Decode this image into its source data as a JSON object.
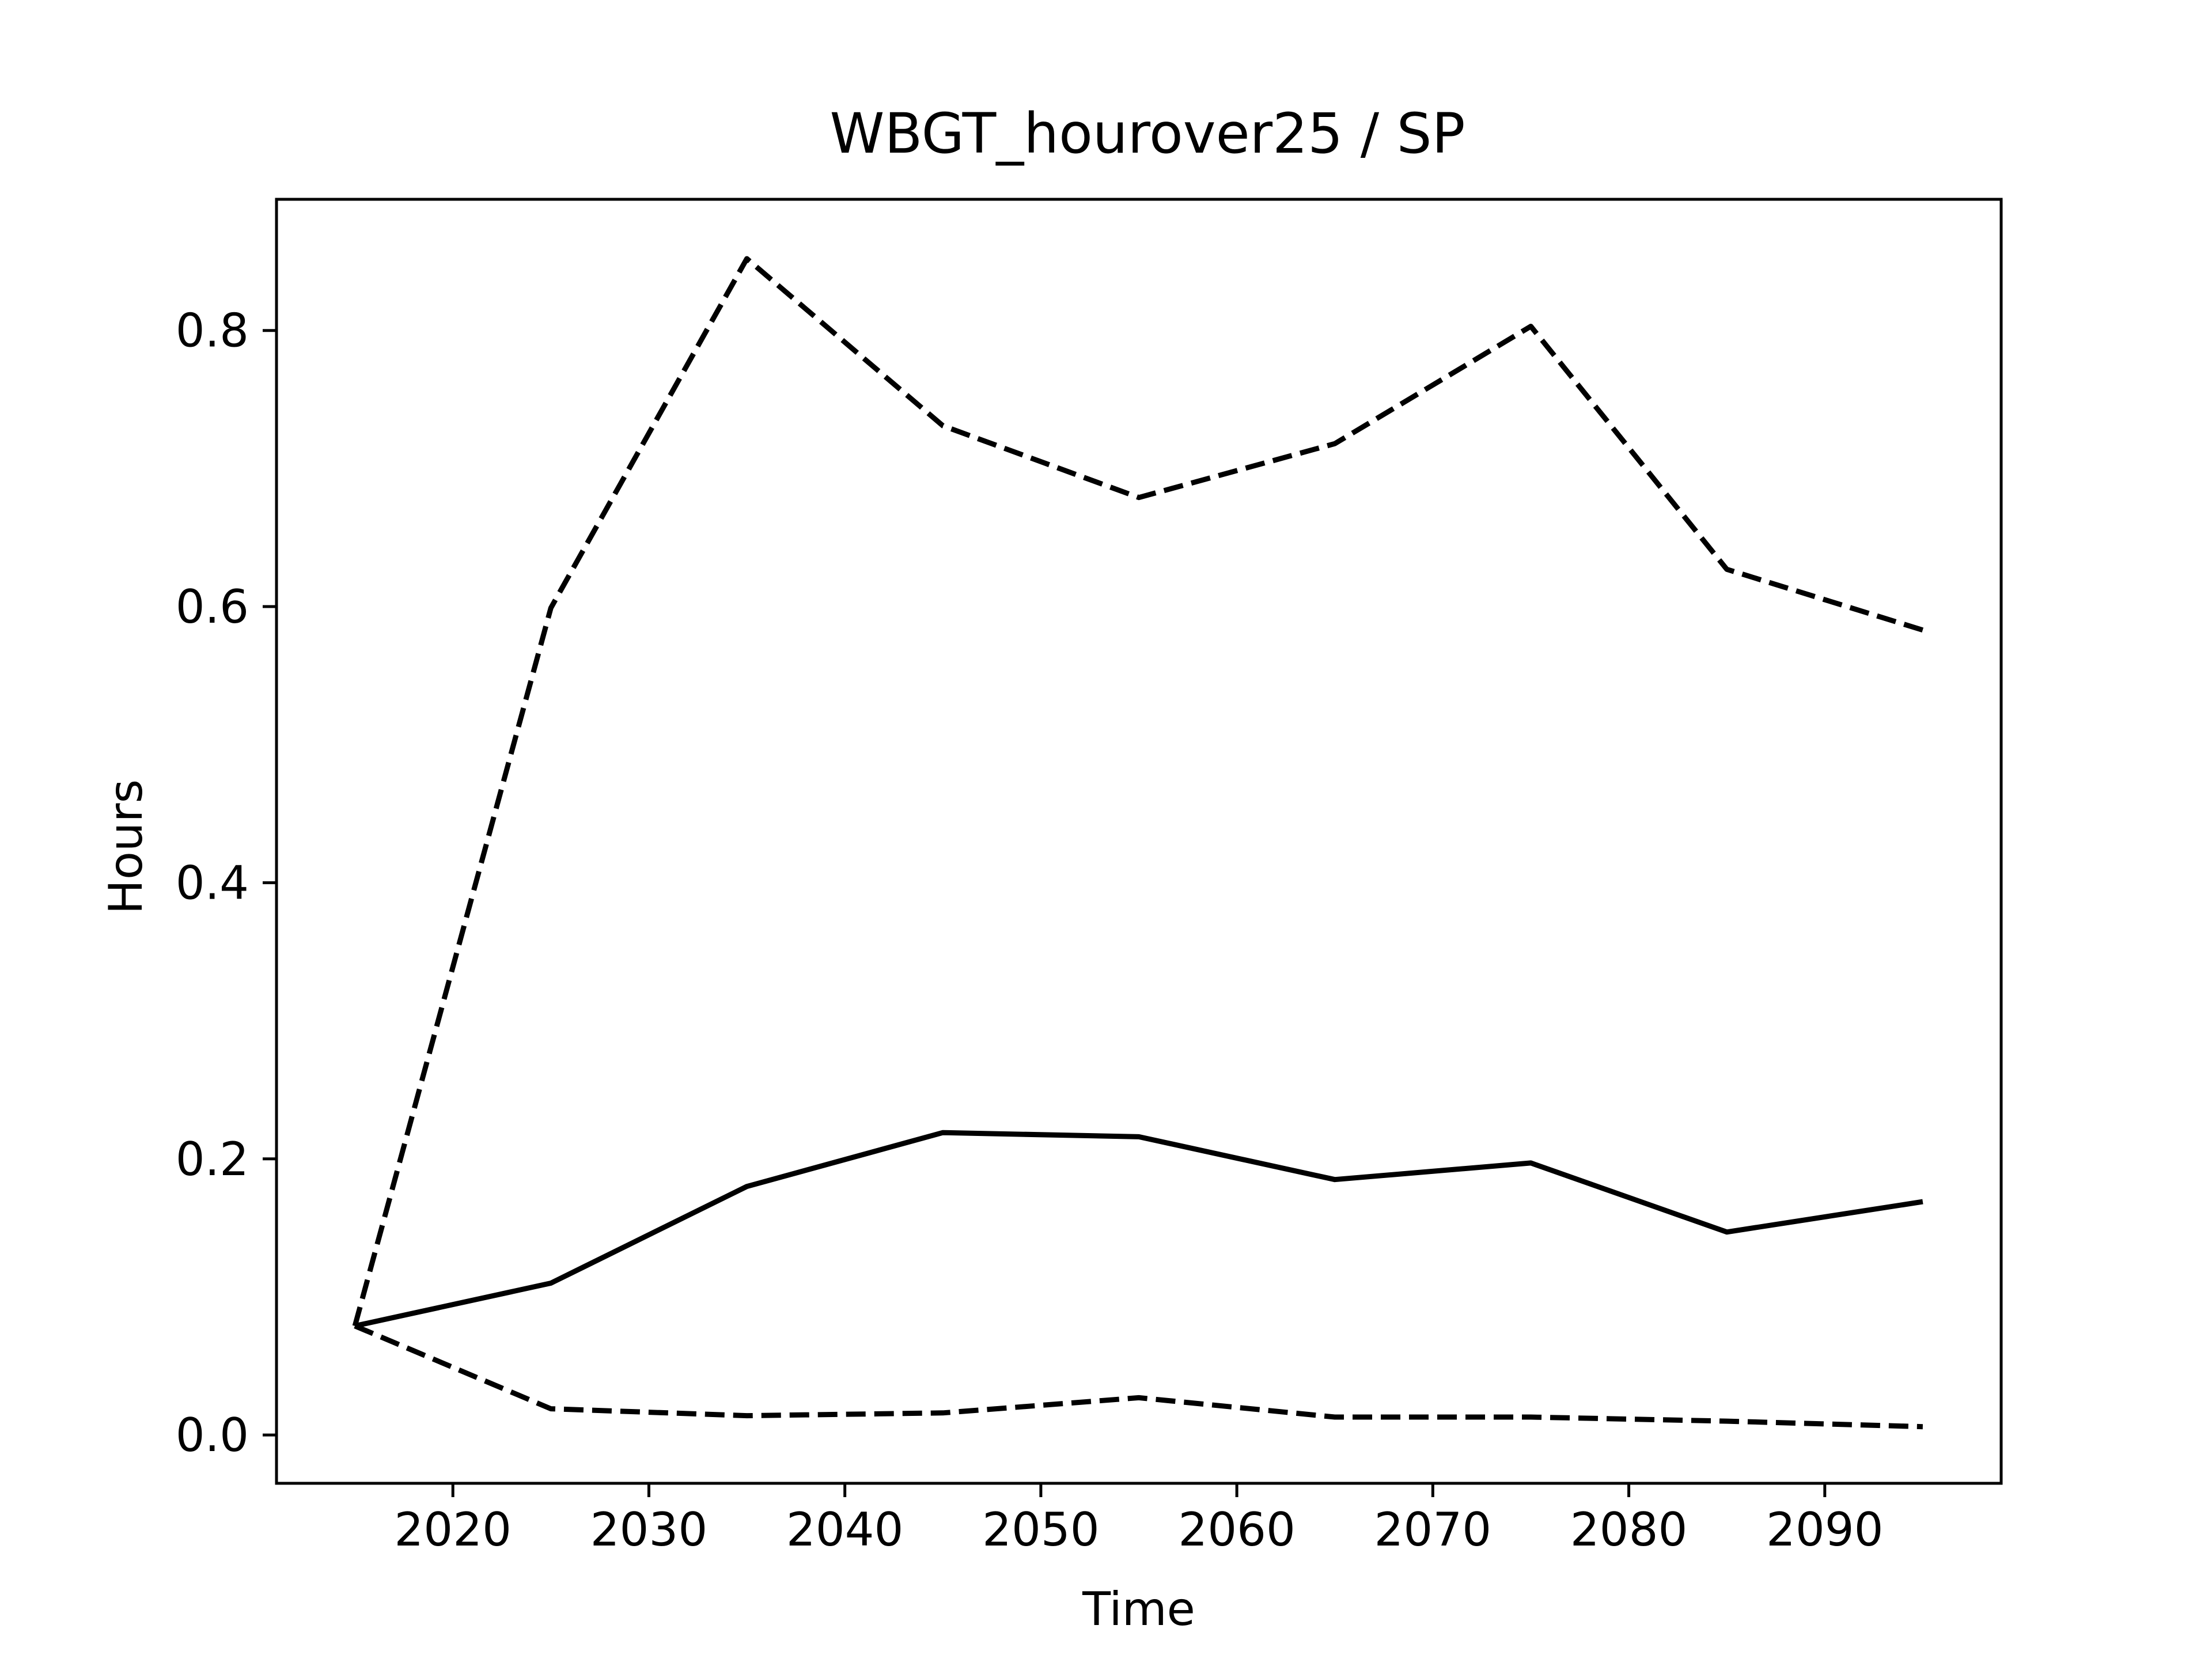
{
  "chart_data": {
    "type": "line",
    "title": "WBGT_hourover25 / SP",
    "xlabel": "Time",
    "ylabel": "Hours",
    "xlim": [
      2011,
      2099
    ],
    "ylim": [
      -0.035,
      0.895
    ],
    "xticks": [
      2020,
      2030,
      2040,
      2050,
      2060,
      2070,
      2080,
      2090
    ],
    "yticks": [
      0.0,
      0.2,
      0.4,
      0.6,
      0.8
    ],
    "xtick_labels": [
      "2020",
      "2030",
      "2040",
      "2050",
      "2060",
      "2070",
      "2080",
      "2090"
    ],
    "ytick_labels": [
      "0.0",
      "0.2",
      "0.4",
      "0.6",
      "0.8"
    ],
    "grid": false,
    "x": [
      2015,
      2025,
      2035,
      2045,
      2055,
      2065,
      2075,
      2085,
      2095
    ],
    "series": [
      {
        "style": "solid",
        "color": "#000000",
        "values": [
          0.079,
          0.11,
          0.18,
          0.219,
          0.216,
          0.185,
          0.197,
          0.147,
          0.169
        ]
      },
      {
        "style": "dashed",
        "color": "#000000",
        "values": [
          0.079,
          0.599,
          0.852,
          0.731,
          0.679,
          0.718,
          0.803,
          0.627,
          0.583
        ]
      },
      {
        "style": "dashed",
        "color": "#000000",
        "values": [
          0.079,
          0.019,
          0.014,
          0.016,
          0.027,
          0.013,
          0.013,
          0.01,
          0.006
        ]
      }
    ]
  }
}
